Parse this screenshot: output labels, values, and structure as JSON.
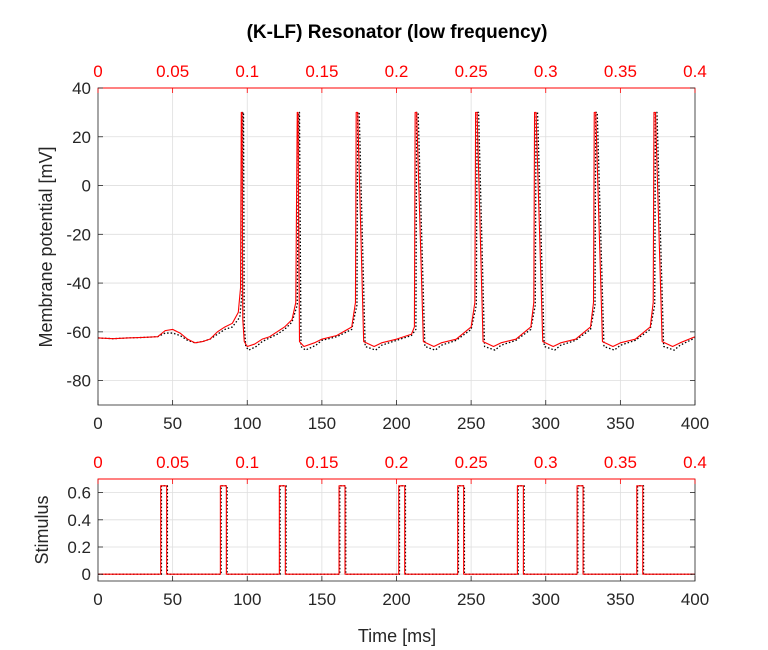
{
  "chart_data": [
    {
      "type": "line",
      "title": "(K-LF) Resonator (low frequency)",
      "xlabel": "",
      "ylabel": "Membrane potential [mV]",
      "xlim": [
        0,
        400
      ],
      "ylim": [
        -90,
        40
      ],
      "x_ticks": [
        "0",
        "50",
        "100",
        "150",
        "200",
        "250",
        "300",
        "350",
        "400"
      ],
      "y_ticks": [
        "40",
        "20",
        "0",
        "-20",
        "-40",
        "-60",
        "-80"
      ],
      "top_axis_ticks": [
        "0",
        "0.05",
        "0.1",
        "0.15",
        "0.2",
        "0.25",
        "0.3",
        "0.35",
        "0.4"
      ],
      "top_axis_color": "#ff0000",
      "grid": true,
      "spike_times": [
        96,
        133.5,
        173,
        212.5,
        253,
        292.5,
        332.5,
        372.5
      ],
      "spike_peak": 30,
      "series": [
        {
          "color": "#ff0000",
          "style": "solid",
          "x": [
            0,
            10,
            20,
            30,
            40,
            45,
            50,
            55,
            60,
            65,
            70,
            75,
            80,
            85,
            90,
            94,
            95.5,
            96,
            96.5,
            97,
            98,
            100,
            105,
            110,
            115,
            120,
            125,
            130,
            132.5,
            133.5,
            134,
            135,
            138,
            145,
            150,
            160,
            170,
            172.5,
            173,
            174,
            178,
            185,
            190,
            200,
            210,
            212,
            212.5,
            213.5,
            218,
            225,
            230,
            240,
            250,
            252.5,
            253,
            254,
            258,
            265,
            270,
            280,
            290,
            292,
            292.5,
            293.5,
            298,
            305,
            310,
            320,
            330,
            332,
            332.5,
            333.5,
            338,
            345,
            350,
            360,
            370,
            372,
            372.5,
            373.5,
            378,
            385,
            390,
            400
          ],
          "y": [
            -62.5,
            -62.8,
            -62.5,
            -62.3,
            -62,
            -59.5,
            -59,
            -60.5,
            -63,
            -64.5,
            -64,
            -63,
            -60,
            -58,
            -56.5,
            -52,
            -42,
            30,
            30,
            -55,
            -64,
            -66,
            -65,
            -63,
            -62,
            -60,
            -58,
            -55,
            -48,
            30,
            30,
            -64,
            -66,
            -64.5,
            -63,
            -61.5,
            -58,
            -48,
            30,
            30,
            -64,
            -66,
            -64.5,
            -63,
            -61,
            -58,
            30,
            30,
            -64,
            -66,
            -64.5,
            -63,
            -58,
            -48,
            30,
            30,
            -64,
            -66,
            -64.5,
            -63,
            -58,
            -48,
            30,
            30,
            -64,
            -66,
            -64.5,
            -63,
            -58,
            -48,
            30,
            30,
            -64,
            -66,
            -64.5,
            -63,
            -58,
            -48,
            30,
            30,
            -64,
            -66,
            -64.5,
            -62
          ]
        },
        {
          "color": "#000000",
          "style": "dotted",
          "x": [
            0,
            10,
            20,
            30,
            40,
            45,
            50,
            55,
            60,
            65,
            70,
            75,
            80,
            85,
            90,
            95,
            96.5,
            97,
            97.5,
            98,
            99,
            101,
            106,
            110,
            115,
            120,
            125,
            130,
            133.5,
            134.5,
            135,
            136,
            139,
            146,
            150,
            160,
            170,
            173.5,
            174,
            175,
            179,
            186,
            190,
            200,
            210,
            213,
            213.5,
            214.5,
            219,
            226,
            230,
            240,
            250,
            253.5,
            254,
            255,
            259,
            266,
            270,
            280,
            290,
            293,
            293.5,
            294.5,
            299,
            306,
            310,
            320,
            330,
            333,
            333.5,
            334.5,
            339,
            346,
            350,
            360,
            370,
            373,
            373.5,
            374.5,
            379,
            386,
            390,
            400
          ],
          "y": [
            -62.5,
            -62.8,
            -62.5,
            -62.3,
            -62,
            -60.5,
            -60.5,
            -61.5,
            -63.5,
            -64.5,
            -64,
            -63,
            -61,
            -59,
            -58,
            -54,
            -44,
            30,
            30,
            -57,
            -66,
            -67.5,
            -66,
            -64,
            -62.5,
            -61,
            -59,
            -56,
            -49,
            30,
            30,
            -66,
            -67.5,
            -65.5,
            -63.5,
            -62,
            -59,
            -49,
            30,
            30,
            -66,
            -67.5,
            -65.5,
            -63.5,
            -61.5,
            -59,
            30,
            30,
            -66,
            -67.5,
            -65.5,
            -63.5,
            -59,
            -49,
            30,
            30,
            -66,
            -67.5,
            -65.5,
            -63.5,
            -59,
            -49,
            30,
            30,
            -66,
            -67.5,
            -65.5,
            -63.5,
            -59,
            -49,
            30,
            30,
            -66,
            -67.5,
            -65.5,
            -63.5,
            -59,
            -49,
            30,
            30,
            -66,
            -67.5,
            -65.5,
            -62.5
          ]
        }
      ]
    },
    {
      "type": "line",
      "title": "",
      "xlabel": "Time [ms]",
      "ylabel": "Stimulus",
      "xlim": [
        0,
        400
      ],
      "ylim": [
        -0.05,
        0.7
      ],
      "x_ticks": [
        "0",
        "50",
        "100",
        "150",
        "200",
        "250",
        "300",
        "350",
        "400"
      ],
      "y_ticks": [
        "0.6",
        "0.4",
        "0.2",
        "0"
      ],
      "top_axis_ticks": [
        "0",
        "0.05",
        "0.1",
        "0.15",
        "0.2",
        "0.25",
        "0.3",
        "0.35",
        "0.4"
      ],
      "top_axis_color": "#ff0000",
      "grid": true,
      "pulse_amplitude": 0.65,
      "pulse_width_ms": 4,
      "series": [
        {
          "color": "#ff0000",
          "style": "solid",
          "pulse_starts": [
            42,
            82,
            121.5,
            161.5,
            201.5,
            241,
            281,
            321,
            361
          ]
        },
        {
          "color": "#000000",
          "style": "dotted",
          "pulse_starts": [
            42.5,
            82.5,
            122,
            162,
            202,
            241.5,
            281.5,
            321.5,
            361.5
          ]
        }
      ]
    }
  ]
}
